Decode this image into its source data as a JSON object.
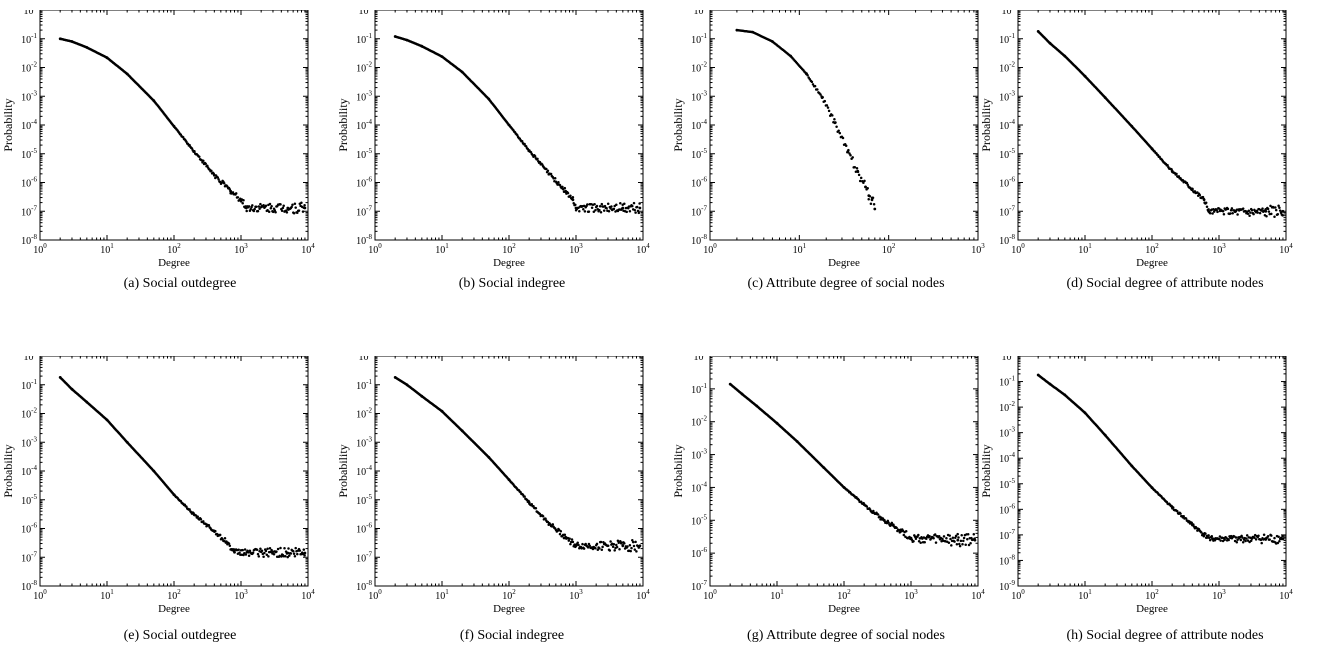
{
  "chart_data": [
    {
      "type": "scatter",
      "caption": "(a) Social outdegree",
      "xlabel": "Degree",
      "ylabel": "Probability",
      "x_scale": "log",
      "y_scale": "log",
      "xlim": [
        1,
        10000
      ],
      "ylim": [
        1e-08,
        1
      ],
      "x_ticks": [
        "10^0",
        "10^1",
        "10^2",
        "10^3",
        "10^4"
      ],
      "y_ticks": [
        "10^-8",
        "10^-7",
        "10^-6",
        "10^-5",
        "10^-4",
        "10^-3",
        "10^-2",
        "10^-1",
        "10^0"
      ],
      "series": [
        {
          "points": [
            [
              2,
              0.1
            ],
            [
              3,
              0.08
            ],
            [
              5,
              0.05
            ],
            [
              10,
              0.022
            ],
            [
              20,
              0.006
            ],
            [
              50,
              0.0007
            ],
            [
              100,
              9e-05
            ],
            [
              200,
              1.2e-05
            ],
            [
              400,
              1.8e-06
            ],
            [
              700,
              5e-07
            ],
            [
              1000,
              2.5e-07
            ],
            [
              1200,
              1.3e-07
            ],
            [
              5000,
              1.3e-07
            ],
            [
              9000,
              1.3e-07
            ]
          ]
        }
      ]
    },
    {
      "type": "scatter",
      "caption": "(b) Social indegree",
      "xlabel": "Degree",
      "ylabel": "Probability",
      "x_scale": "log",
      "y_scale": "log",
      "xlim": [
        1,
        10000
      ],
      "ylim": [
        1e-08,
        1
      ],
      "x_ticks": [
        "10^0",
        "10^1",
        "10^2",
        "10^3",
        "10^4"
      ],
      "y_ticks": [
        "10^-8",
        "10^-7",
        "10^-6",
        "10^-5",
        "10^-4",
        "10^-3",
        "10^-2",
        "10^-1",
        "10^0"
      ],
      "series": [
        {
          "points": [
            [
              2,
              0.12
            ],
            [
              3,
              0.09
            ],
            [
              5,
              0.055
            ],
            [
              10,
              0.024
            ],
            [
              20,
              0.007
            ],
            [
              50,
              0.0008
            ],
            [
              100,
              0.0001
            ],
            [
              200,
              1.3e-05
            ],
            [
              400,
              2e-06
            ],
            [
              700,
              5e-07
            ],
            [
              900,
              2.5e-07
            ],
            [
              1000,
              1.3e-07
            ],
            [
              5000,
              1.3e-07
            ],
            [
              9000,
              1.3e-07
            ]
          ]
        }
      ]
    },
    {
      "type": "scatter",
      "caption": "(c) Attribute degree of social nodes",
      "xlabel": "Degree",
      "ylabel": "Probability",
      "x_scale": "log",
      "y_scale": "log",
      "xlim": [
        1,
        1000
      ],
      "ylim": [
        1e-08,
        1
      ],
      "x_ticks": [
        "10^0",
        "10^1",
        "10^2",
        "10^3"
      ],
      "y_ticks": [
        "10^-8",
        "10^-7",
        "10^-6",
        "10^-5",
        "10^-4",
        "10^-3",
        "10^-2",
        "10^-1",
        "10^0"
      ],
      "series": [
        {
          "points": [
            [
              2,
              0.2
            ],
            [
              3,
              0.17
            ],
            [
              5,
              0.08
            ],
            [
              8,
              0.025
            ],
            [
              12,
              0.006
            ],
            [
              18,
              0.0009
            ],
            [
              25,
              0.00012
            ],
            [
              35,
              1.2e-05
            ],
            [
              45,
              2.5e-06
            ],
            [
              55,
              7e-07
            ],
            [
              60,
              3.5e-07
            ],
            [
              65,
              2.5e-07
            ],
            [
              70,
              1.2e-07
            ]
          ]
        }
      ]
    },
    {
      "type": "scatter",
      "caption": "(d) Social degree of attribute nodes",
      "xlabel": "Degree",
      "ylabel": "Probability",
      "x_scale": "log",
      "y_scale": "log",
      "xlim": [
        1,
        10000
      ],
      "ylim": [
        1e-08,
        1
      ],
      "x_ticks": [
        "10^0",
        "10^1",
        "10^2",
        "10^3",
        "10^4"
      ],
      "y_ticks": [
        "10^-8",
        "10^-7",
        "10^-6",
        "10^-5",
        "10^-4",
        "10^-3",
        "10^-2",
        "10^-1",
        "10^0"
      ],
      "series": [
        {
          "points": [
            [
              2,
              0.18
            ],
            [
              3,
              0.07
            ],
            [
              5,
              0.025
            ],
            [
              10,
              0.005
            ],
            [
              20,
              0.0009
            ],
            [
              50,
              9e-05
            ],
            [
              100,
              1.5e-05
            ],
            [
              200,
              2.5e-06
            ],
            [
              400,
              6e-07
            ],
            [
              600,
              2.5e-07
            ],
            [
              700,
              1e-07
            ],
            [
              5000,
              1e-07
            ],
            [
              9000,
              1e-07
            ]
          ]
        }
      ]
    },
    {
      "type": "scatter",
      "caption": "(e) Social outdegree",
      "xlabel": "Degree",
      "ylabel": "Probability",
      "x_scale": "log",
      "y_scale": "log",
      "xlim": [
        1,
        10000
      ],
      "ylim": [
        1e-08,
        1
      ],
      "x_ticks": [
        "10^0",
        "10^1",
        "10^2",
        "10^3",
        "10^4"
      ],
      "y_ticks": [
        "10^-8",
        "10^-7",
        "10^-6",
        "10^-5",
        "10^-4",
        "10^-3",
        "10^-2",
        "10^-1",
        "10^0"
      ],
      "series": [
        {
          "points": [
            [
              2,
              0.18
            ],
            [
              3,
              0.07
            ],
            [
              5,
              0.025
            ],
            [
              10,
              0.006
            ],
            [
              20,
              0.001
            ],
            [
              50,
              0.0001
            ],
            [
              100,
              1.5e-05
            ],
            [
              200,
              3e-06
            ],
            [
              400,
              8e-07
            ],
            [
              600,
              3.5e-07
            ],
            [
              800,
              1.5e-07
            ],
            [
              5000,
              1.4e-07
            ],
            [
              9000,
              1.4e-07
            ]
          ]
        }
      ]
    },
    {
      "type": "scatter",
      "caption": "(f) Social indegree",
      "xlabel": "Degree",
      "ylabel": "Probability",
      "x_scale": "log",
      "y_scale": "log",
      "xlim": [
        1,
        10000
      ],
      "ylim": [
        1e-08,
        1
      ],
      "x_ticks": [
        "10^0",
        "10^1",
        "10^2",
        "10^3",
        "10^4"
      ],
      "y_ticks": [
        "10^-8",
        "10^-7",
        "10^-6",
        "10^-5",
        "10^-4",
        "10^-3",
        "10^-2",
        "10^-1",
        "10^0"
      ],
      "series": [
        {
          "points": [
            [
              2,
              0.18
            ],
            [
              3,
              0.1
            ],
            [
              5,
              0.04
            ],
            [
              10,
              0.012
            ],
            [
              20,
              0.0025
            ],
            [
              50,
              0.0003
            ],
            [
              100,
              5e-05
            ],
            [
              200,
              8e-06
            ],
            [
              400,
              1.5e-06
            ],
            [
              700,
              5e-07
            ],
            [
              1000,
              2.5e-07
            ],
            [
              5000,
              2.5e-07
            ],
            [
              9000,
              2.5e-07
            ]
          ]
        }
      ]
    },
    {
      "type": "scatter",
      "caption": "(g) Attribute degree of social nodes",
      "xlabel": "Degree",
      "ylabel": "Probability",
      "x_scale": "log",
      "y_scale": "log",
      "xlim": [
        1,
        10000
      ],
      "ylim": [
        1e-07,
        1
      ],
      "x_ticks": [
        "10^0",
        "10^1",
        "10^2",
        "10^3",
        "10^4"
      ],
      "y_ticks": [
        "10^-7",
        "10^-6",
        "10^-5",
        "10^-4",
        "10^-3",
        "10^-2",
        "10^-1",
        "10^0"
      ],
      "series": [
        {
          "points": [
            [
              2,
              0.14
            ],
            [
              3,
              0.07
            ],
            [
              5,
              0.03
            ],
            [
              10,
              0.009
            ],
            [
              20,
              0.0025
            ],
            [
              50,
              0.0004
            ],
            [
              100,
              0.0001
            ],
            [
              200,
              3e-05
            ],
            [
              400,
              1e-05
            ],
            [
              700,
              5e-06
            ],
            [
              1000,
              2.8e-06
            ],
            [
              5000,
              2.5e-06
            ],
            [
              9000,
              2.5e-06
            ]
          ]
        }
      ]
    },
    {
      "type": "scatter",
      "caption": "(h) Social degree of attribute nodes",
      "xlabel": "Degree",
      "ylabel": "Probability",
      "x_scale": "log",
      "y_scale": "log",
      "xlim": [
        1,
        10000
      ],
      "ylim": [
        1e-09,
        1
      ],
      "x_ticks": [
        "10^0",
        "10^1",
        "10^2",
        "10^3",
        "10^4"
      ],
      "y_ticks": [
        "10^-9",
        "10^-8",
        "10^-7",
        "10^-6",
        "10^-5",
        "10^-4",
        "10^-3",
        "10^-2",
        "10^-1",
        "10^0"
      ],
      "series": [
        {
          "points": [
            [
              2,
              0.18
            ],
            [
              3,
              0.08
            ],
            [
              5,
              0.03
            ],
            [
              10,
              0.006
            ],
            [
              20,
              0.0008
            ],
            [
              50,
              5e-05
            ],
            [
              100,
              7e-06
            ],
            [
              200,
              1.2e-06
            ],
            [
              400,
              2.5e-07
            ],
            [
              600,
              1e-07
            ],
            [
              800,
              7e-08
            ],
            [
              5000,
              7e-08
            ],
            [
              9000,
              7e-08
            ]
          ]
        }
      ]
    }
  ]
}
